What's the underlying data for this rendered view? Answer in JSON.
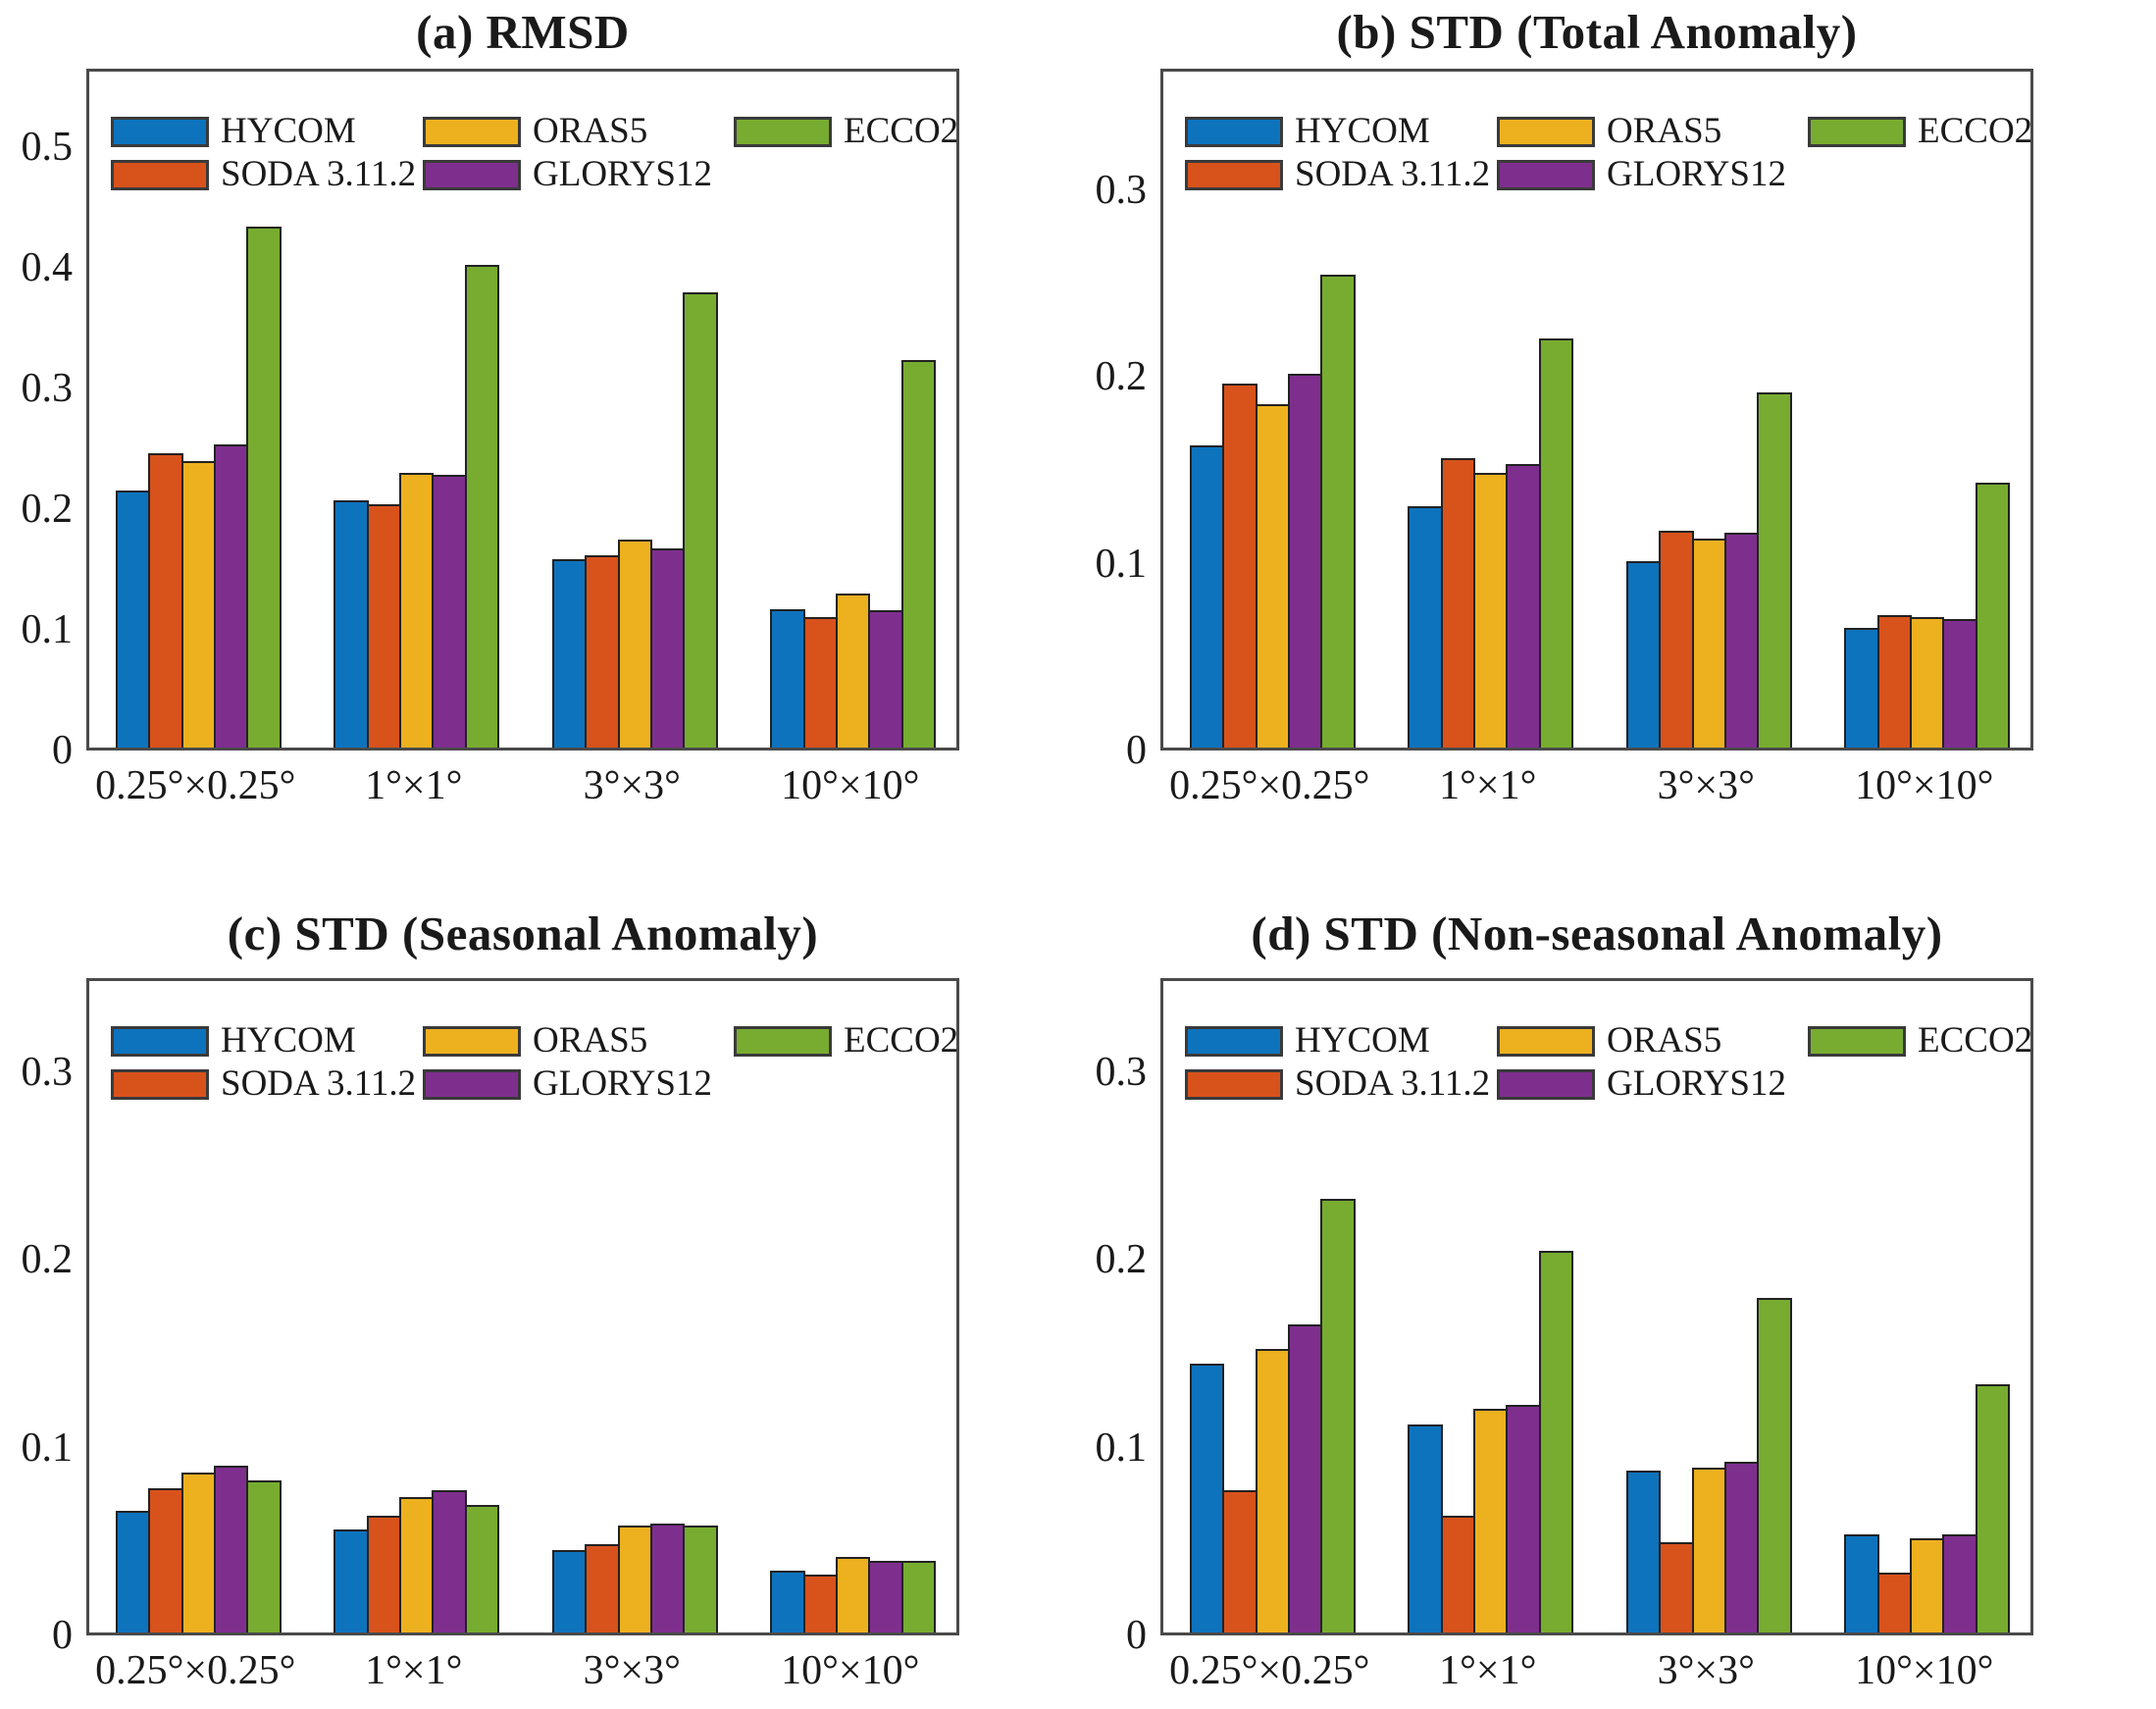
{
  "page": {
    "background": "#ffffff",
    "text_color": "#1a1a1a"
  },
  "legend": {
    "position": "top-left-inside",
    "items": [
      {
        "label": "HYCOM",
        "color": "#0E73BD"
      },
      {
        "label": "SODA 3.11.2",
        "color": "#D8521C"
      },
      {
        "label": "ORAS5",
        "color": "#EDB120"
      },
      {
        "label": "GLORYS12",
        "color": "#7E2F8E"
      },
      {
        "label": "ECCO2",
        "color": "#77AC30"
      }
    ],
    "layout_rows": [
      [
        0,
        2,
        4
      ],
      [
        1,
        3
      ]
    ]
  },
  "chart_data": [
    {
      "type": "bar",
      "panel_id": "a",
      "title": "(a) RMSD",
      "categories": [
        "0.25°×0.25°",
        "1°×1°",
        "3°×3°",
        "10°×10°"
      ],
      "series": [
        {
          "name": "HYCOM",
          "color": "#0E73BD",
          "values": [
            0.213,
            0.205,
            0.156,
            0.115
          ]
        },
        {
          "name": "SODA 3.11.2",
          "color": "#D8521C",
          "values": [
            0.244,
            0.202,
            0.159,
            0.108
          ]
        },
        {
          "name": "ORAS5",
          "color": "#EDB120",
          "values": [
            0.237,
            0.228,
            0.172,
            0.128
          ]
        },
        {
          "name": "GLORYS12",
          "color": "#7E2F8E",
          "values": [
            0.251,
            0.226,
            0.165,
            0.114
          ]
        },
        {
          "name": "ECCO2",
          "color": "#77AC30",
          "values": [
            0.432,
            0.4,
            0.377,
            0.321
          ]
        }
      ],
      "ylim": [
        0,
        0.565
      ],
      "yticks": [
        "0",
        "0.1",
        "0.2",
        "0.3",
        "0.4",
        "0.5"
      ],
      "grid": false,
      "legend_position": "top-left-inside"
    },
    {
      "type": "bar",
      "panel_id": "b",
      "title": "(b) STD (Total Anomaly)",
      "categories": [
        "0.25°×0.25°",
        "1°×1°",
        "3°×3°",
        "10°×10°"
      ],
      "series": [
        {
          "name": "HYCOM",
          "color": "#0E73BD",
          "values": [
            0.162,
            0.129,
            0.1,
            0.064
          ]
        },
        {
          "name": "SODA 3.11.2",
          "color": "#D8521C",
          "values": [
            0.195,
            0.155,
            0.116,
            0.071
          ]
        },
        {
          "name": "ORAS5",
          "color": "#EDB120",
          "values": [
            0.184,
            0.147,
            0.112,
            0.07
          ]
        },
        {
          "name": "GLORYS12",
          "color": "#7E2F8E",
          "values": [
            0.2,
            0.152,
            0.115,
            0.069
          ]
        },
        {
          "name": "ECCO2",
          "color": "#77AC30",
          "values": [
            0.253,
            0.219,
            0.19,
            0.142
          ]
        }
      ],
      "ylim": [
        0,
        0.365
      ],
      "yticks": [
        "0",
        "0.1",
        "0.2",
        "0.3"
      ],
      "grid": false,
      "legend_position": "top-left-inside"
    },
    {
      "type": "bar",
      "panel_id": "c",
      "title": "(c) STD (Seasonal Anomaly)",
      "categories": [
        "0.25°×0.25°",
        "1°×1°",
        "3°×3°",
        "10°×10°"
      ],
      "series": [
        {
          "name": "HYCOM",
          "color": "#0E73BD",
          "values": [
            0.065,
            0.055,
            0.044,
            0.033
          ]
        },
        {
          "name": "SODA 3.11.2",
          "color": "#D8521C",
          "values": [
            0.077,
            0.062,
            0.047,
            0.031
          ]
        },
        {
          "name": "ORAS5",
          "color": "#EDB120",
          "values": [
            0.085,
            0.072,
            0.057,
            0.04
          ]
        },
        {
          "name": "GLORYS12",
          "color": "#7E2F8E",
          "values": [
            0.089,
            0.076,
            0.058,
            0.038
          ]
        },
        {
          "name": "ECCO2",
          "color": "#77AC30",
          "values": [
            0.081,
            0.068,
            0.057,
            0.038
          ]
        }
      ],
      "ylim": [
        0,
        0.35
      ],
      "yticks": [
        "0",
        "0.1",
        "0.2",
        "0.3"
      ],
      "grid": false,
      "legend_position": "top-left-inside"
    },
    {
      "type": "bar",
      "panel_id": "d",
      "title": "(d) STD (Non-seasonal Anomaly)",
      "categories": [
        "0.25°×0.25°",
        "1°×1°",
        "3°×3°",
        "10°×10°"
      ],
      "series": [
        {
          "name": "HYCOM",
          "color": "#0E73BD",
          "values": [
            0.143,
            0.111,
            0.086,
            0.052
          ]
        },
        {
          "name": "SODA 3.11.2",
          "color": "#D8521C",
          "values": [
            0.076,
            0.062,
            0.048,
            0.032
          ]
        },
        {
          "name": "ORAS5",
          "color": "#EDB120",
          "values": [
            0.151,
            0.119,
            0.088,
            0.05
          ]
        },
        {
          "name": "GLORYS12",
          "color": "#7E2F8E",
          "values": [
            0.164,
            0.121,
            0.091,
            0.052
          ]
        },
        {
          "name": "ECCO2",
          "color": "#77AC30",
          "values": [
            0.231,
            0.203,
            0.178,
            0.132
          ]
        }
      ],
      "ylim": [
        0,
        0.35
      ],
      "yticks": [
        "0",
        "0.1",
        "0.2",
        "0.3"
      ],
      "grid": false,
      "legend_position": "top-left-inside"
    }
  ]
}
